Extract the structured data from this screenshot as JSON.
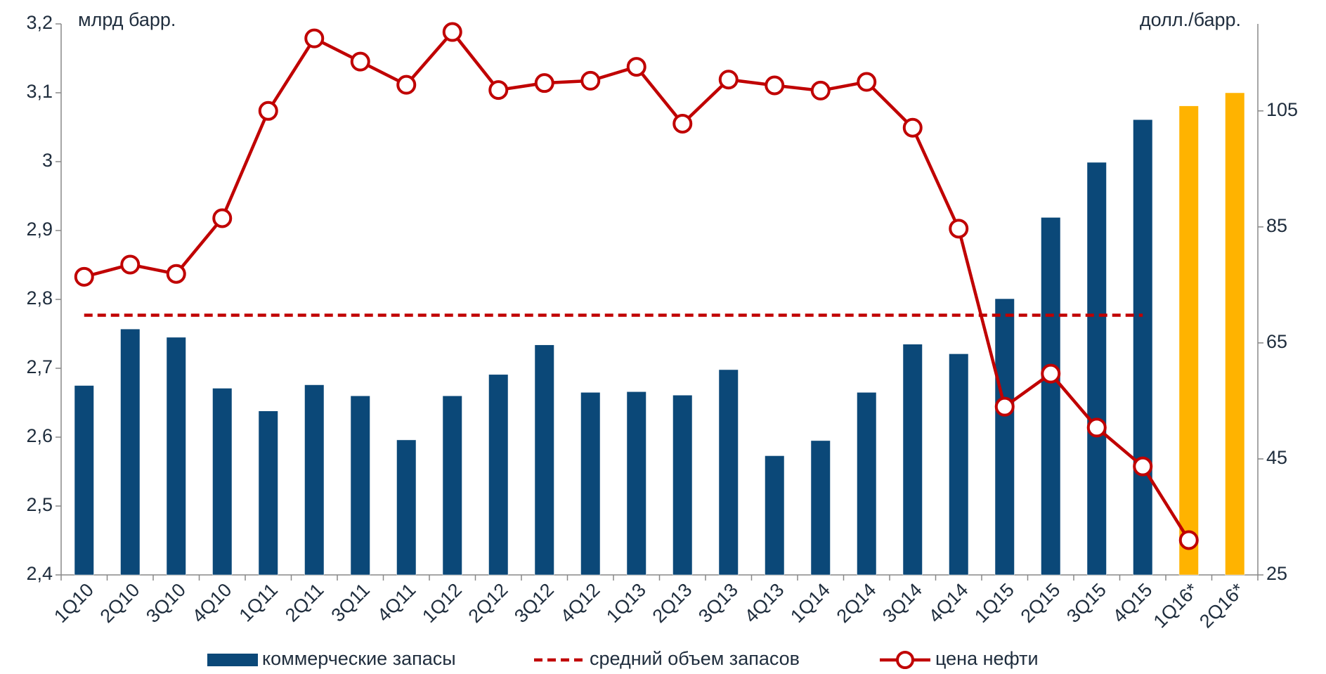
{
  "chart_data": {
    "type": "bar_line",
    "y_label": "млрд барр.",
    "y2_label": "долл./барр.",
    "categories": [
      "1Q10",
      "2Q10",
      "3Q10",
      "4Q10",
      "1Q11",
      "2Q11",
      "3Q11",
      "4Q11",
      "1Q12",
      "2Q12",
      "3Q12",
      "4Q12",
      "1Q13",
      "2Q13",
      "3Q13",
      "4Q13",
      "1Q14",
      "2Q14",
      "3Q14",
      "4Q14",
      "1Q15",
      "2Q15",
      "3Q15",
      "4Q15",
      "1Q16*",
      "2Q16*"
    ],
    "series": [
      {
        "name": "коммерческие запасы",
        "type": "bar",
        "color": "#0b4878",
        "colors": [
          "#0b4878",
          "#0b4878",
          "#0b4878",
          "#0b4878",
          "#0b4878",
          "#0b4878",
          "#0b4878",
          "#0b4878",
          "#0b4878",
          "#0b4878",
          "#0b4878",
          "#0b4878",
          "#0b4878",
          "#0b4878",
          "#0b4878",
          "#0b4878",
          "#0b4878",
          "#0b4878",
          "#0b4878",
          "#0b4878",
          "#0b4878",
          "#0b4878",
          "#0b4878",
          "#0b4878",
          "#ffb300",
          "#ffb300"
        ],
        "values": [
          2.675,
          2.757,
          2.745,
          2.671,
          2.638,
          2.676,
          2.66,
          2.596,
          2.66,
          2.691,
          2.734,
          2.665,
          2.666,
          2.661,
          2.698,
          2.573,
          2.595,
          2.665,
          2.735,
          2.721,
          2.801,
          2.919,
          2.999,
          3.061,
          3.081,
          3.1
        ]
      },
      {
        "name": "средний объем запасов",
        "type": "dashed",
        "color": "#c00000",
        "values": [
          2.777,
          2.777,
          2.777,
          2.777,
          2.777,
          2.777,
          2.777,
          2.777,
          2.777,
          2.777,
          2.777,
          2.777,
          2.777,
          2.777,
          2.777,
          2.777,
          2.777,
          2.777,
          2.777,
          2.777,
          2.777,
          2.777,
          2.777,
          2.777,
          null,
          null
        ]
      },
      {
        "name": "цена нефти",
        "type": "line",
        "axis": "y2",
        "color": "#c00000",
        "values": [
          76.4,
          78.5,
          76.9,
          86.5,
          105,
          117.5,
          113.5,
          109.5,
          118.6,
          108.6,
          109.8,
          110.2,
          112.6,
          102.8,
          110.4,
          109.4,
          108.5,
          110,
          102.1,
          84.7,
          54,
          59.7,
          50.4,
          43.7,
          31,
          null
        ]
      }
    ],
    "ylim": [
      2.4,
      3.2
    ],
    "yticks": [
      {
        "value": 2.4,
        "label": "2,4"
      },
      {
        "value": 2.5,
        "label": "2,5"
      },
      {
        "value": 2.6,
        "label": "2,6"
      },
      {
        "value": 2.7,
        "label": "2,7"
      },
      {
        "value": 2.8,
        "label": "2,8"
      },
      {
        "value": 2.9,
        "label": "2,9"
      },
      3,
      {
        "value": 3.1,
        "label": "3,1"
      },
      {
        "value": 3.2,
        "label": "3,2"
      }
    ],
    "y2lim": [
      25,
      120
    ],
    "y2ticks": [
      25,
      45,
      65,
      85,
      105
    ],
    "grid": false
  }
}
